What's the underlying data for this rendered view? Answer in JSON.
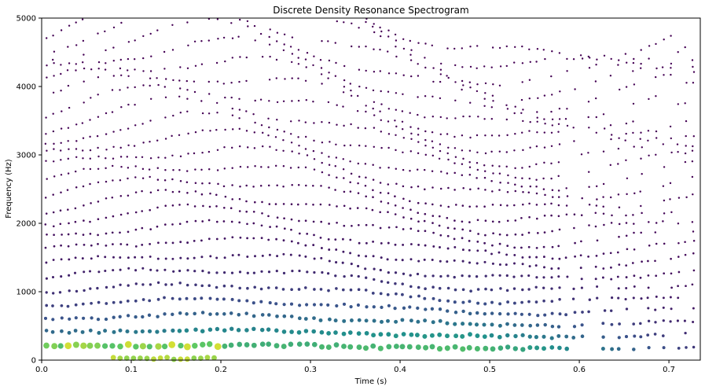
{
  "chart_data": {
    "type": "scatter",
    "title": "Discrete Density Resonance Spectrogram",
    "xlabel": "Time (s)",
    "ylabel": "Frequency (Hz)",
    "xlim": [
      0,
      0.735
    ],
    "ylim": [
      0,
      5000
    ],
    "xticks": [
      0.0,
      0.1,
      0.2,
      0.3,
      0.4,
      0.5,
      0.6,
      0.7
    ],
    "xtick_labels": [
      "0.0",
      "0.1",
      "0.2",
      "0.3",
      "0.4",
      "0.5",
      "0.6",
      "0.7"
    ],
    "yticks": [
      0,
      1000,
      2000,
      3000,
      4000,
      5000
    ],
    "ytick_labels": [
      "0",
      "1000",
      "2000",
      "3000",
      "4000",
      "5000"
    ],
    "colormap": "viridis",
    "colors": {
      "low": "#440154",
      "mid_low": "#3b528b",
      "mid": "#21918c",
      "mid_high": "#5ec962",
      "high": "#fde725"
    },
    "grid": false,
    "legend": "none",
    "point_density": "discrete samples along time-frequency resonance tracks; marker size and color encode intensity (larger, yellow = higher)",
    "resonance_tracks": [
      {
        "track": 1,
        "freq_start": 250,
        "freq_end": 200,
        "intensity_peak": 0.95
      },
      {
        "track": 2,
        "freq_start": 420,
        "freq_end": 300,
        "intensity_peak": 0.8
      },
      {
        "track": 3,
        "freq_start": 600,
        "freq_end": 350,
        "intensity_peak": 0.55
      },
      {
        "track": 4,
        "freq_start": 800,
        "freq_end": 450,
        "intensity_peak": 0.45
      }
    ]
  }
}
